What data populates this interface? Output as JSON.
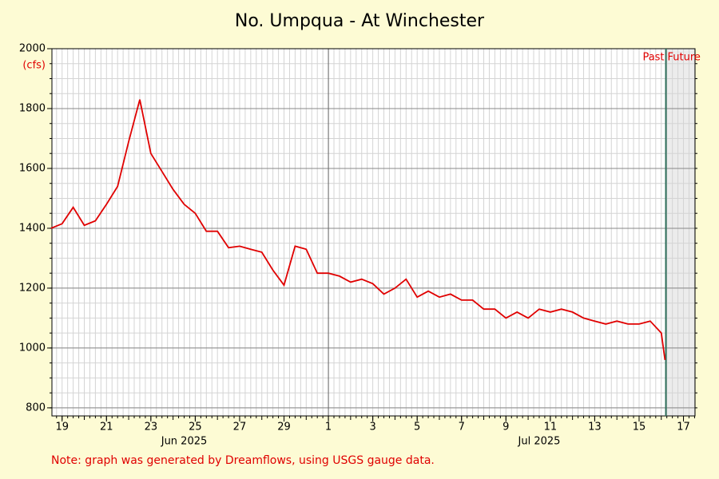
{
  "chart_data": {
    "type": "line",
    "title": "No. Umpqua - At Winchester",
    "y_label": "(cfs)",
    "note": "Note: graph was generated by Dreamflows, using USGS gauge data.",
    "past_label": "Past",
    "future_label": "Future",
    "now": "2025-07-16T05:00",
    "x": [
      "2025-06-18T12:00",
      "2025-06-19T00:00",
      "2025-06-19T12:00",
      "2025-06-20T00:00",
      "2025-06-20T12:00",
      "2025-06-21T00:00",
      "2025-06-21T12:00",
      "2025-06-22T00:00",
      "2025-06-22T12:00",
      "2025-06-23T00:00",
      "2025-06-23T12:00",
      "2025-06-24T00:00",
      "2025-06-24T12:00",
      "2025-06-25T00:00",
      "2025-06-25T12:00",
      "2025-06-26T00:00",
      "2025-06-26T12:00",
      "2025-06-27T00:00",
      "2025-06-27T12:00",
      "2025-06-28T00:00",
      "2025-06-28T12:00",
      "2025-06-29T00:00",
      "2025-06-29T12:00",
      "2025-06-30T00:00",
      "2025-06-30T12:00",
      "2025-07-01T00:00",
      "2025-07-01T12:00",
      "2025-07-02T00:00",
      "2025-07-02T12:00",
      "2025-07-03T00:00",
      "2025-07-03T12:00",
      "2025-07-04T00:00",
      "2025-07-04T12:00",
      "2025-07-05T00:00",
      "2025-07-05T12:00",
      "2025-07-06T00:00",
      "2025-07-06T12:00",
      "2025-07-07T00:00",
      "2025-07-07T12:00",
      "2025-07-08T00:00",
      "2025-07-08T12:00",
      "2025-07-09T00:00",
      "2025-07-09T12:00",
      "2025-07-10T00:00",
      "2025-07-10T12:00",
      "2025-07-11T00:00",
      "2025-07-11T12:00",
      "2025-07-12T00:00",
      "2025-07-12T12:00",
      "2025-07-13T00:00",
      "2025-07-13T12:00",
      "2025-07-14T00:00",
      "2025-07-14T12:00",
      "2025-07-15T00:00",
      "2025-07-15T12:00",
      "2025-07-16T00:00",
      "2025-07-16T04:00"
    ],
    "series": [
      {
        "name": "Flow",
        "color": "#e00000",
        "values": [
          1400,
          1415,
          1470,
          1410,
          1425,
          1480,
          1540,
          1690,
          1830,
          1650,
          1590,
          1530,
          1480,
          1450,
          1390,
          1390,
          1335,
          1340,
          1330,
          1320,
          1260,
          1210,
          1340,
          1330,
          1250,
          1250,
          1240,
          1220,
          1230,
          1215,
          1180,
          1200,
          1230,
          1170,
          1190,
          1170,
          1180,
          1160,
          1160,
          1130,
          1130,
          1100,
          1120,
          1100,
          1130,
          1120,
          1130,
          1120,
          1100,
          1090,
          1080,
          1090,
          1080,
          1080,
          1090,
          1050,
          960
        ]
      }
    ],
    "xlim": [
      "2025-06-18T13:00",
      "2025-07-17T12:30"
    ],
    "xticks": [
      {
        "value": "2025-06-19T00:00",
        "label": "19"
      },
      {
        "value": "2025-06-21T00:00",
        "label": "21"
      },
      {
        "value": "2025-06-23T00:00",
        "label": "23"
      },
      {
        "value": "2025-06-25T00:00",
        "label": "25"
      },
      {
        "value": "2025-06-27T00:00",
        "label": "27"
      },
      {
        "value": "2025-06-29T00:00",
        "label": "29"
      },
      {
        "value": "2025-07-01T00:00",
        "label": "1"
      },
      {
        "value": "2025-07-03T00:00",
        "label": "3"
      },
      {
        "value": "2025-07-05T00:00",
        "label": "5"
      },
      {
        "value": "2025-07-07T00:00",
        "label": "7"
      },
      {
        "value": "2025-07-09T00:00",
        "label": "9"
      },
      {
        "value": "2025-07-11T00:00",
        "label": "11"
      },
      {
        "value": "2025-07-13T00:00",
        "label": "13"
      },
      {
        "value": "2025-07-15T00:00",
        "label": "15"
      },
      {
        "value": "2025-07-17T00:00",
        "label": "17"
      }
    ],
    "month_labels": [
      {
        "value": "2025-06-24T12:00",
        "label": "Jun 2025"
      },
      {
        "value": "2025-07-10T12:00",
        "label": "Jul 2025"
      }
    ],
    "ylim": [
      773,
      2000
    ],
    "yticks": [
      800,
      1000,
      1200,
      1400,
      1600,
      1800,
      2000
    ],
    "grid": true
  }
}
